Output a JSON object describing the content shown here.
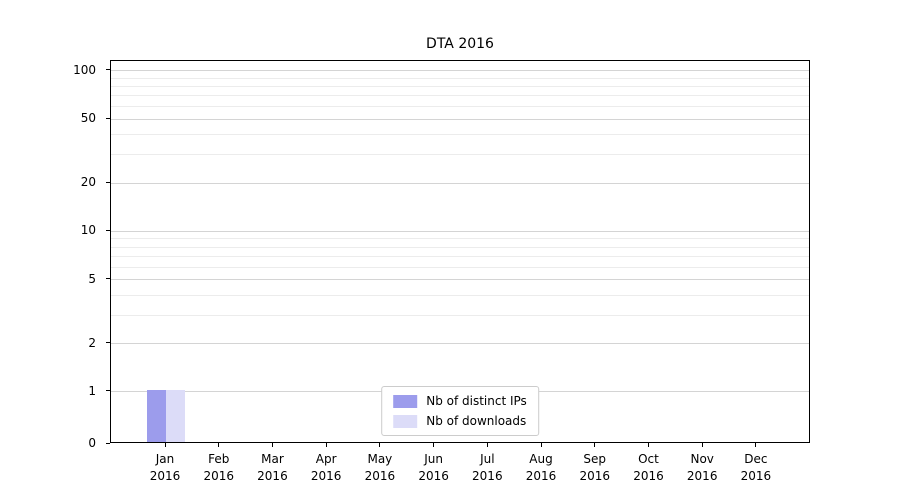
{
  "chart_data": {
    "type": "bar",
    "title": "DTA 2016",
    "categories": [
      "Jan 2016",
      "Feb 2016",
      "Mar 2016",
      "Apr 2016",
      "May 2016",
      "Jun 2016",
      "Jul 2016",
      "Aug 2016",
      "Sep 2016",
      "Oct 2016",
      "Nov 2016",
      "Dec 2016"
    ],
    "series": [
      {
        "name": "Nb of distinct IPs",
        "color": "#9c9cec",
        "values": [
          1,
          0,
          0,
          0,
          0,
          0,
          0,
          0,
          0,
          0,
          0,
          0
        ]
      },
      {
        "name": "Nb of downloads",
        "color": "#dcdcf8",
        "values": [
          1,
          0,
          0,
          0,
          0,
          0,
          0,
          0,
          0,
          0,
          0,
          0
        ]
      }
    ],
    "yticks": [
      0,
      1,
      2,
      5,
      10,
      20,
      50,
      100
    ],
    "minor_yticks": [
      3,
      4,
      6,
      7,
      8,
      9,
      30,
      40,
      60,
      70,
      80,
      90
    ],
    "ylim": [
      0,
      100
    ],
    "scale": "symlog",
    "grid": "horizontal",
    "legend_position": "lower center",
    "colors": {
      "major_grid": "#d4d4d4",
      "minor_grid": "#ececec",
      "spine": "#000000"
    }
  }
}
